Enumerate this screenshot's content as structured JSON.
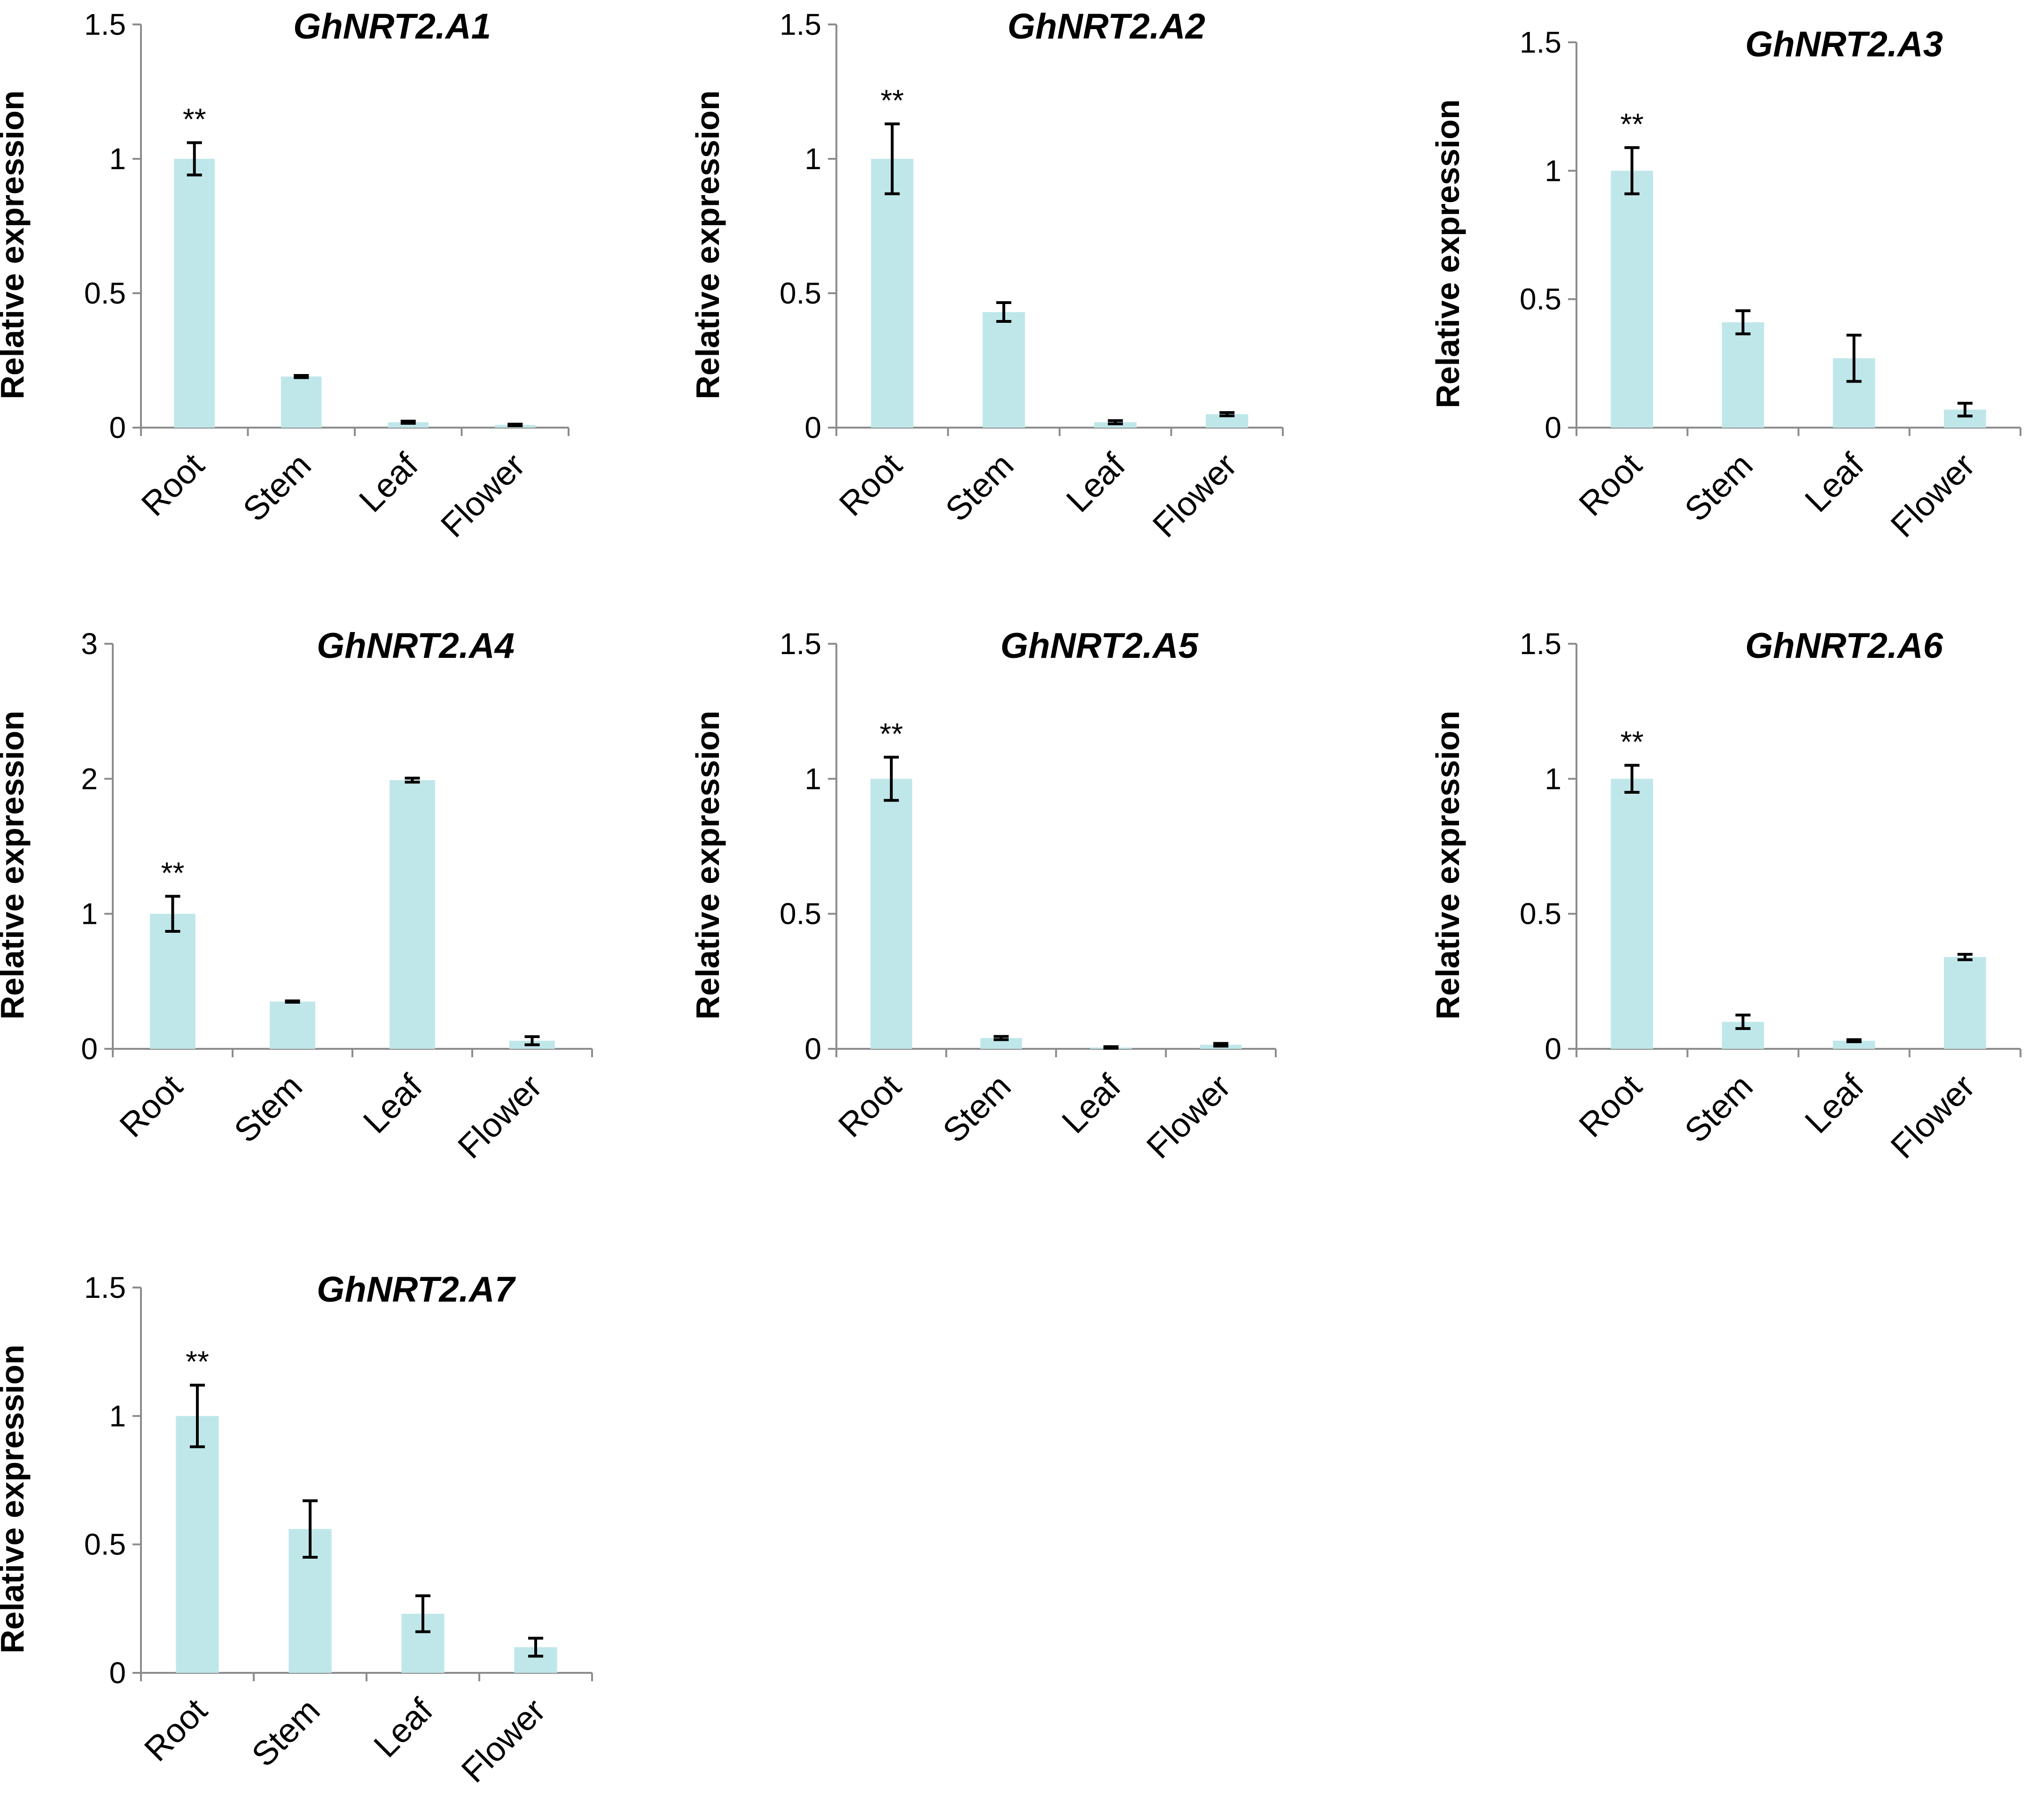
{
  "chart_data": [
    {
      "type": "bar",
      "title": "GhNRT2.A1",
      "ylabel": "Relative expression",
      "xlabel": "",
      "categories": [
        "Root",
        "Stem",
        "Leaf",
        "Flower"
      ],
      "values": [
        1.0,
        0.19,
        0.02,
        0.01
      ],
      "errors": [
        0.06,
        0.004,
        0.004,
        0.003
      ],
      "ylim": [
        0,
        1.5
      ],
      "yticks": [
        0,
        0.5,
        1,
        1.5
      ],
      "ytick_labels": [
        "0",
        "0.5",
        "1",
        "1.5"
      ],
      "annotations": [
        {
          "category": "Root",
          "text": "**"
        }
      ],
      "bar_color": "#bfe7ea",
      "grid": false
    },
    {
      "type": "bar",
      "title": "GhNRT2.A2",
      "ylabel": "Relative expression",
      "xlabel": "",
      "categories": [
        "Root",
        "Stem",
        "Leaf",
        "Flower"
      ],
      "values": [
        1.0,
        0.43,
        0.02,
        0.05
      ],
      "errors": [
        0.13,
        0.035,
        0.006,
        0.006
      ],
      "ylim": [
        0,
        1.5
      ],
      "yticks": [
        0,
        0.5,
        1,
        1.5
      ],
      "ytick_labels": [
        "0",
        "0.5",
        "1",
        "1.5"
      ],
      "annotations": [
        {
          "category": "Root",
          "text": "**"
        }
      ],
      "bar_color": "#bfe7ea",
      "grid": false
    },
    {
      "type": "bar",
      "title": "GhNRT2.A3",
      "ylabel": "Relative expression",
      "xlabel": "",
      "categories": [
        "Root",
        "Stem",
        "Leaf",
        "Flower"
      ],
      "values": [
        1.0,
        0.41,
        0.27,
        0.07
      ],
      "errors": [
        0.09,
        0.045,
        0.09,
        0.025
      ],
      "ylim": [
        0,
        1.5
      ],
      "yticks": [
        0,
        0.5,
        1,
        1.5
      ],
      "ytick_labels": [
        "0",
        "0.5",
        "1",
        "1.5"
      ],
      "annotations": [
        {
          "category": "Root",
          "text": "**"
        }
      ],
      "bar_color": "#bfe7ea",
      "grid": false
    },
    {
      "type": "bar",
      "title": "GhNRT2.A4",
      "ylabel": "Relative expression",
      "xlabel": "",
      "categories": [
        "Root",
        "Stem",
        "Leaf",
        "Flower"
      ],
      "values": [
        1.0,
        0.35,
        1.99,
        0.06
      ],
      "errors": [
        0.13,
        0.005,
        0.015,
        0.03
      ],
      "ylim": [
        0,
        3
      ],
      "yticks": [
        0,
        1,
        2,
        3
      ],
      "ytick_labels": [
        "0",
        "1",
        "2",
        "3"
      ],
      "annotations": [
        {
          "category": "Root",
          "text": "**"
        }
      ],
      "bar_color": "#bfe7ea",
      "grid": false
    },
    {
      "type": "bar",
      "title": "GhNRT2.A5",
      "ylabel": "Relative expression",
      "xlabel": "",
      "categories": [
        "Root",
        "Stem",
        "Leaf",
        "Flower"
      ],
      "values": [
        1.0,
        0.04,
        0.005,
        0.015
      ],
      "errors": [
        0.08,
        0.006,
        0.003,
        0.005
      ],
      "ylim": [
        0,
        1.5
      ],
      "yticks": [
        0,
        0.5,
        1,
        1.5
      ],
      "ytick_labels": [
        "0",
        "0.5",
        "1",
        "1.5"
      ],
      "annotations": [
        {
          "category": "Root",
          "text": "**"
        }
      ],
      "bar_color": "#bfe7ea",
      "grid": false
    },
    {
      "type": "bar",
      "title": "GhNRT2.A6",
      "ylabel": "Relative expression",
      "xlabel": "",
      "categories": [
        "Root",
        "Stem",
        "Leaf",
        "Flower"
      ],
      "values": [
        1.0,
        0.1,
        0.03,
        0.34
      ],
      "errors": [
        0.05,
        0.025,
        0.004,
        0.01
      ],
      "ylim": [
        0,
        1.5
      ],
      "yticks": [
        0,
        0.5,
        1,
        1.5
      ],
      "ytick_labels": [
        "0",
        "0.5",
        "1",
        "1.5"
      ],
      "annotations": [
        {
          "category": "Root",
          "text": "**"
        }
      ],
      "bar_color": "#bfe7ea",
      "grid": false
    },
    {
      "type": "bar",
      "title": "GhNRT2.A7",
      "ylabel": "Relative expression",
      "xlabel": "",
      "categories": [
        "Root",
        "Stem",
        "Leaf",
        "Flower"
      ],
      "values": [
        1.0,
        0.56,
        0.23,
        0.1
      ],
      "errors": [
        0.12,
        0.11,
        0.07,
        0.035
      ],
      "ylim": [
        0,
        1.5
      ],
      "yticks": [
        0,
        0.5,
        1,
        1.5
      ],
      "ytick_labels": [
        "0",
        "0.5",
        "1",
        "1.5"
      ],
      "annotations": [
        {
          "category": "Root",
          "text": "**"
        }
      ],
      "bar_color": "#bfe7ea",
      "grid": false
    }
  ]
}
